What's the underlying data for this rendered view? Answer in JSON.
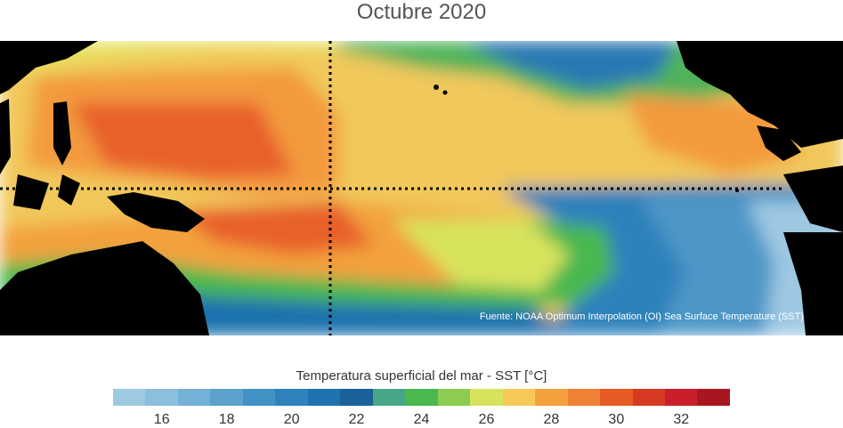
{
  "title": "Octubre 2020",
  "source_note": "Fuente: NOAA Optimum Interpolation (OI) Sea Surface Temperature (SST)",
  "colorbar": {
    "label": "Temperatura superficial del mar - SST  [°C]",
    "min": 15,
    "max": 33,
    "ticks": [
      "16",
      "18",
      "20",
      "22",
      "24",
      "26",
      "28",
      "30",
      "32"
    ],
    "colors": [
      "#9ecae1",
      "#8bbfdd",
      "#73b1d6",
      "#5ba2cd",
      "#4292c6",
      "#2f82bb",
      "#1e72ad",
      "#1a6199",
      "#48a587",
      "#4ab84f",
      "#8ccc50",
      "#d8e35d",
      "#f6c85a",
      "#f3a13e",
      "#ef8135",
      "#e75b25",
      "#d63a23",
      "#c81f2a",
      "#a8171f"
    ]
  },
  "map": {
    "land_color": "#000000",
    "reference_lines": [
      "equator",
      "dateline"
    ]
  }
}
